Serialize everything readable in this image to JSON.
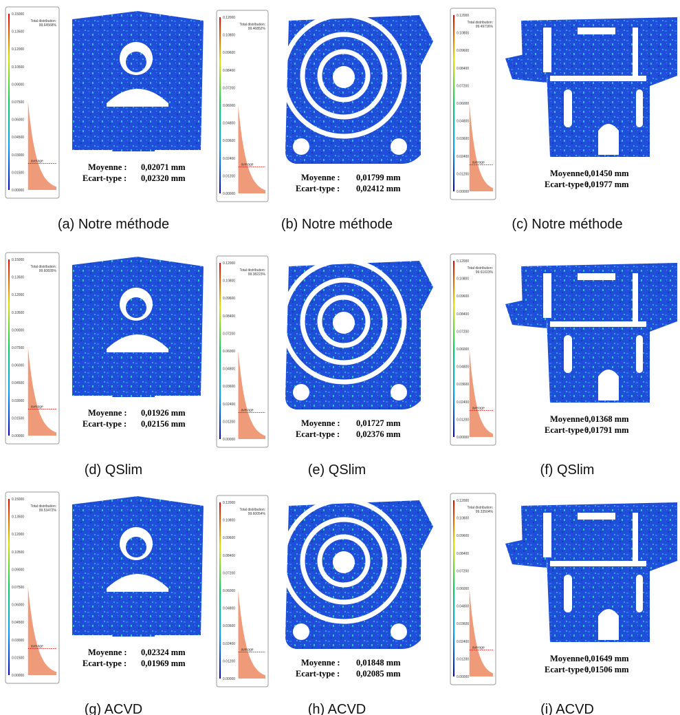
{
  "stat_labels": {
    "mean": "Moyenne :",
    "std": "Ecart-type :"
  },
  "scale_labels": {
    "total": "Total distribution:",
    "average": "average"
  },
  "panels": [
    {
      "caption": "(a)  Notre méthode",
      "mean": "0,02071 mm",
      "std": "0,02320 mm",
      "total": "99.64568%",
      "ticks": [
        "0.15000",
        "0.13500",
        "0.12000",
        "0.10500",
        "0.09000",
        "0.07500",
        "0.06000",
        "0.04500",
        "0.03000",
        "0.01500",
        "0.00000"
      ]
    },
    {
      "caption": "(b)  Notre méthode",
      "mean": "0,01799 mm",
      "std": "0,02412 mm",
      "total": "99.46852%",
      "ticks": [
        "0.12000",
        "0.10800",
        "0.09600",
        "0.08400",
        "0.07200",
        "0.06000",
        "0.04800",
        "0.03600",
        "0.02400",
        "0.01200",
        "0.00000"
      ]
    },
    {
      "caption": "(c)  Notre méthode",
      "mean": "0,01450 mm",
      "std": "0,01977 mm",
      "total": "99.49716%",
      "ticks": [
        "0.12000",
        "0.10800",
        "0.09600",
        "0.08400",
        "0.07200",
        "0.06000",
        "0.04800",
        "0.03600",
        "0.02400",
        "0.01200",
        "0.00000"
      ]
    },
    {
      "caption": "(d)  QSlim",
      "mean": "0,01926 mm",
      "std": "0,02156 mm",
      "total": "99.60835%",
      "ticks": [
        "0.15000",
        "0.13500",
        "0.12000",
        "0.10500",
        "0.09000",
        "0.07500",
        "0.06000",
        "0.04500",
        "0.03000",
        "0.01500",
        "0.00000"
      ]
    },
    {
      "caption": "(e)  QSlim",
      "mean": "0,01727 mm",
      "std": "0,02376 mm",
      "total": "99.38223%",
      "ticks": [
        "0.12000",
        "0.10800",
        "0.09600",
        "0.08400",
        "0.07200",
        "0.06000",
        "0.04800",
        "0.03600",
        "0.02400",
        "0.01200",
        "0.00000"
      ]
    },
    {
      "caption": "(f)  QSlim",
      "mean": "0,01368 mm",
      "std": "0,01791 mm",
      "total": "99.61023%",
      "ticks": [
        "0.12000",
        "0.10800",
        "0.09600",
        "0.08400",
        "0.07200",
        "0.06000",
        "0.04800",
        "0.03600",
        "0.02400",
        "0.01200",
        "0.00000"
      ]
    },
    {
      "caption": "(g)  ACVD",
      "mean": "0,02324 mm",
      "std": "0,01969 mm",
      "total": "99.53472%",
      "ticks": [
        "0.15000",
        "0.13500",
        "0.12000",
        "0.10500",
        "0.09000",
        "0.07500",
        "0.06000",
        "0.04500",
        "0.03000",
        "0.01500",
        "0.00000"
      ]
    },
    {
      "caption": "(h)  ACVD",
      "mean": "0,01848 mm",
      "std": "0,02085 mm",
      "total": "99.60054%",
      "ticks": [
        "0.12000",
        "0.10800",
        "0.09600",
        "0.08400",
        "0.07200",
        "0.06000",
        "0.04800",
        "0.03600",
        "0.02400",
        "0.01200",
        "0.00000"
      ]
    },
    {
      "caption": "(i)  ACVD",
      "mean": "0,01649 mm",
      "std": "0,01506 mm",
      "total": "99.33504%",
      "ticks": [
        "0.12000",
        "0.10800",
        "0.09600",
        "0.08400",
        "0.07200",
        "0.06000",
        "0.04800",
        "0.03600",
        "0.02400",
        "0.01200",
        "0.00000"
      ]
    }
  ]
}
